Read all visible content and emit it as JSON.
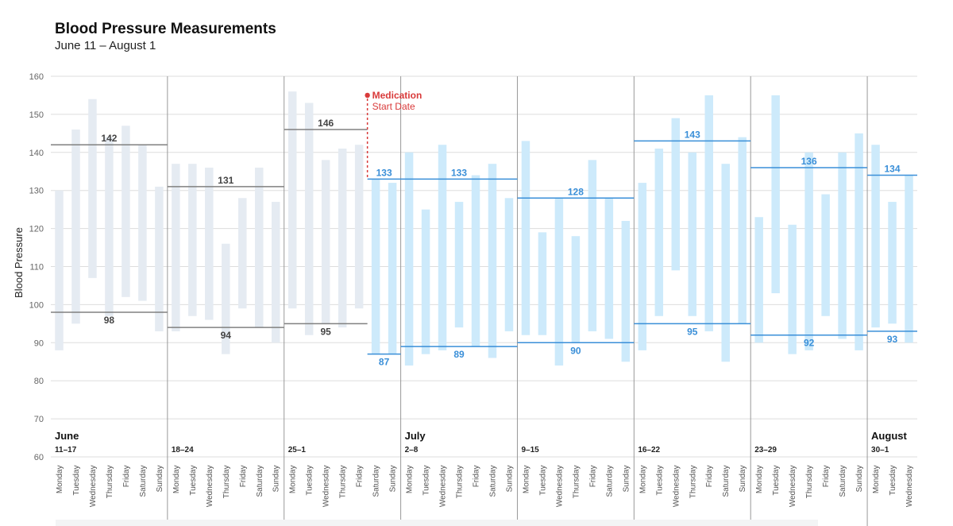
{
  "header": {
    "title": "Blood Pressure Measurements",
    "subtitle": "June 11 – August 1"
  },
  "chart_data": {
    "type": "bar",
    "title": "Blood Pressure Measurements",
    "subtitle": "June 11 – August 1",
    "ylabel": "Blood Pressure",
    "xlabel": "",
    "ylim": [
      60,
      160
    ],
    "yticks": [
      60,
      70,
      80,
      90,
      100,
      110,
      120,
      130,
      140,
      150,
      160
    ],
    "grid": true,
    "colors": {
      "before": "#e5ebf2",
      "after": "#cdeafb",
      "avg_before": "#808080",
      "avg_after": "#3a8fd8",
      "label_before": "#444444",
      "label_after": "#3a8fd8",
      "medication": "#d93a3a",
      "grid": "#dddddd",
      "week_divider": "#999999"
    },
    "medication": {
      "label": "Medication",
      "sublabel": "Start Date",
      "day_index": 19,
      "value": 155
    },
    "days": [
      {
        "day": "Monday",
        "low": 88,
        "high": 130
      },
      {
        "day": "Tuesday",
        "low": 95,
        "high": 146
      },
      {
        "day": "Wednesday",
        "low": 107,
        "high": 154
      },
      {
        "day": "Thursday",
        "low": 97,
        "high": 144
      },
      {
        "day": "Friday",
        "low": 102,
        "high": 147
      },
      {
        "day": "Saturday",
        "low": 101,
        "high": 142
      },
      {
        "day": "Sunday",
        "low": 93,
        "high": 131
      },
      {
        "day": "Monday",
        "low": 93,
        "high": 137
      },
      {
        "day": "Tuesday",
        "low": 97,
        "high": 137
      },
      {
        "day": "Wednesday",
        "low": 96,
        "high": 136
      },
      {
        "day": "Thursday",
        "low": 87,
        "high": 116
      },
      {
        "day": "Friday",
        "low": 99,
        "high": 128
      },
      {
        "day": "Saturday",
        "low": 94,
        "high": 136
      },
      {
        "day": "Sunday",
        "low": 90,
        "high": 127
      },
      {
        "day": "Monday",
        "low": 99,
        "high": 156
      },
      {
        "day": "Tuesday",
        "low": 92,
        "high": 153
      },
      {
        "day": "Wednesday",
        "low": 95,
        "high": 138
      },
      {
        "day": "Thursday",
        "low": 94,
        "high": 141
      },
      {
        "day": "Friday",
        "low": 99,
        "high": 142
      },
      {
        "day": "Saturday",
        "low": 87,
        "high": 133
      },
      {
        "day": "Sunday",
        "low": 87,
        "high": 132
      },
      {
        "day": "Monday",
        "low": 84,
        "high": 140
      },
      {
        "day": "Tuesday",
        "low": 87,
        "high": 125
      },
      {
        "day": "Wednesday",
        "low": 88,
        "high": 142
      },
      {
        "day": "Thursday",
        "low": 94,
        "high": 127
      },
      {
        "day": "Friday",
        "low": 89,
        "high": 134
      },
      {
        "day": "Saturday",
        "low": 86,
        "high": 137
      },
      {
        "day": "Sunday",
        "low": 93,
        "high": 128
      },
      {
        "day": "Monday",
        "low": 92,
        "high": 143
      },
      {
        "day": "Tuesday",
        "low": 92,
        "high": 119
      },
      {
        "day": "Wednesday",
        "low": 84,
        "high": 128
      },
      {
        "day": "Thursday",
        "low": 90,
        "high": 118
      },
      {
        "day": "Friday",
        "low": 93,
        "high": 138
      },
      {
        "day": "Saturday",
        "low": 91,
        "high": 128
      },
      {
        "day": "Sunday",
        "low": 85,
        "high": 122
      },
      {
        "day": "Monday",
        "low": 88,
        "high": 132
      },
      {
        "day": "Tuesday",
        "low": 97,
        "high": 141
      },
      {
        "day": "Wednesday",
        "low": 109,
        "high": 149
      },
      {
        "day": "Thursday",
        "low": 97,
        "high": 140
      },
      {
        "day": "Friday",
        "low": 93,
        "high": 155
      },
      {
        "day": "Saturday",
        "low": 85,
        "high": 137
      },
      {
        "day": "Sunday",
        "low": 95,
        "high": 144
      },
      {
        "day": "Monday",
        "low": 90,
        "high": 123
      },
      {
        "day": "Tuesday",
        "low": 103,
        "high": 155
      },
      {
        "day": "Wednesday",
        "low": 87,
        "high": 121
      },
      {
        "day": "Thursday",
        "low": 88,
        "high": 140
      },
      {
        "day": "Friday",
        "low": 97,
        "high": 129
      },
      {
        "day": "Saturday",
        "low": 91,
        "high": 140
      },
      {
        "day": "Sunday",
        "low": 88,
        "high": 145
      },
      {
        "day": "Monday",
        "low": 94,
        "high": 142
      },
      {
        "day": "Tuesday",
        "low": 95,
        "high": 127
      },
      {
        "day": "Wednesday",
        "low": 90,
        "high": 134
      }
    ],
    "weeks": [
      {
        "month": "June",
        "range": "11–17",
        "start": 0,
        "end": 7,
        "high_avg": 142,
        "low_avg": 98,
        "avg_start": 0,
        "avg_end": 7,
        "after": false
      },
      {
        "month": "",
        "range": "18–24",
        "start": 7,
        "end": 14,
        "high_avg": 131,
        "low_avg": 94,
        "avg_start": 7,
        "avg_end": 14,
        "after": false
      },
      {
        "month": "",
        "range": "25–1",
        "start": 14,
        "end": 21,
        "high_avg": 146,
        "low_avg": 95,
        "avg_start": 14,
        "avg_end": 19,
        "after": false
      },
      {
        "month": "",
        "range": "",
        "start": 19,
        "end": 21,
        "high_avg": 133,
        "low_avg": 87,
        "avg_start": 19,
        "avg_end": 21,
        "after": true
      },
      {
        "month": "July",
        "range": "2–8",
        "start": 21,
        "end": 28,
        "high_avg": 133,
        "low_avg": 89,
        "avg_start": 21,
        "avg_end": 28,
        "after": true
      },
      {
        "month": "",
        "range": "9–15",
        "start": 28,
        "end": 35,
        "high_avg": 128,
        "low_avg": 90,
        "avg_start": 28,
        "avg_end": 35,
        "after": true
      },
      {
        "month": "",
        "range": "16–22",
        "start": 35,
        "end": 42,
        "high_avg": 143,
        "low_avg": 95,
        "avg_start": 35,
        "avg_end": 42,
        "after": true
      },
      {
        "month": "",
        "range": "23–29",
        "start": 42,
        "end": 49,
        "high_avg": 136,
        "low_avg": 92,
        "avg_start": 42,
        "avg_end": 49,
        "after": true
      },
      {
        "month": "August",
        "range": "30–1",
        "start": 49,
        "end": 52,
        "high_avg": 134,
        "low_avg": 93,
        "avg_start": 49,
        "avg_end": 52,
        "after": true
      }
    ]
  }
}
